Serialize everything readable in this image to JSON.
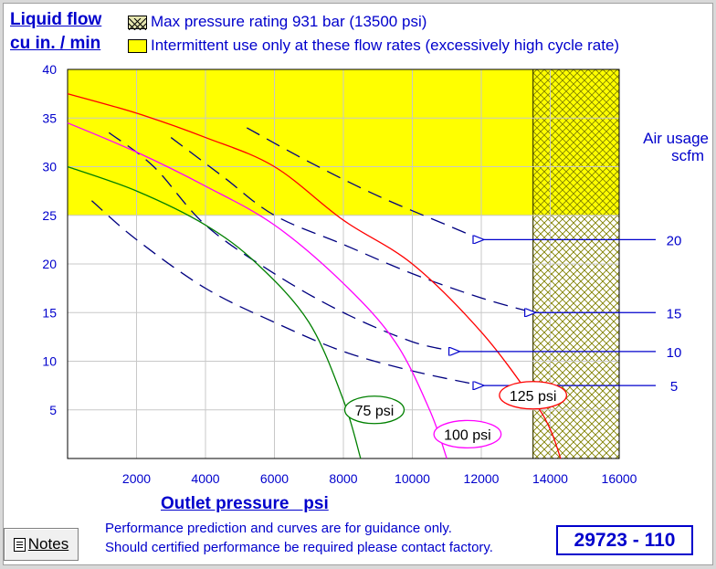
{
  "header": {
    "ylabel_line1": "Liquid flow",
    "ylabel_line2": "cu in. / min",
    "legend_hatch": "Max pressure rating 931 bar (13500 psi)",
    "legend_yellow": "Intermittent use only at these flow rates (excessively high cycle rate)",
    "right_title_line1": "Air usage",
    "right_title_line2": "scfm"
  },
  "footer": {
    "xaxis_title": "Outlet pressure   psi",
    "note_line1": "Performance prediction and curves are for guidance only.",
    "note_line2": "Should certified performance be required please contact factory.",
    "notes_button": "Notes",
    "model": "29723 - 110"
  },
  "colors": {
    "accent": "#0000cc",
    "intermittent_zone": "#ffff00",
    "max_pressure_hatch": "#808000",
    "curve_75": "#008000",
    "curve_100": "#ff00ff",
    "curve_125": "#ff0000",
    "air_usage": "#000080",
    "arrow_line": "#0000cc"
  },
  "icons": [
    "notes-icon"
  ],
  "chart_data": {
    "type": "line",
    "xlim": [
      0,
      16000
    ],
    "ylim": [
      0,
      40
    ],
    "x_ticks": [
      2000,
      4000,
      6000,
      8000,
      10000,
      12000,
      14000,
      16000
    ],
    "y_ticks": [
      5,
      10,
      15,
      20,
      25,
      30,
      35,
      40
    ],
    "x_tick_labels": [
      "2000",
      "4000",
      "6000",
      "8000",
      "10000",
      "12000",
      "14000",
      "16000"
    ],
    "y_tick_labels": [
      "5",
      "10",
      "15",
      "20",
      "25",
      "30",
      "35",
      "40"
    ],
    "grid": true,
    "intermittent_zone": {
      "y_from": 25,
      "y_to": 40
    },
    "max_pressure_zone": {
      "x_from": 13500,
      "x_to": 16000
    },
    "series": [
      {
        "name": "75 psi",
        "color": "#008000",
        "style": "solid",
        "points": [
          [
            0,
            30
          ],
          [
            2000,
            27.5
          ],
          [
            4000,
            24
          ],
          [
            5500,
            20
          ],
          [
            7000,
            14
          ],
          [
            8000,
            6
          ],
          [
            8500,
            0
          ]
        ]
      },
      {
        "name": "100 psi",
        "color": "#ff00ff",
        "style": "solid",
        "points": [
          [
            0,
            34.5
          ],
          [
            2000,
            31.5
          ],
          [
            4000,
            28
          ],
          [
            6000,
            24
          ],
          [
            8000,
            18
          ],
          [
            9500,
            12
          ],
          [
            10500,
            5
          ],
          [
            11000,
            0
          ]
        ]
      },
      {
        "name": "125 psi",
        "color": "#ff0000",
        "style": "solid",
        "points": [
          [
            0,
            37.5
          ],
          [
            2000,
            35.5
          ],
          [
            4000,
            33
          ],
          [
            6000,
            30
          ],
          [
            8000,
            24.5
          ],
          [
            10000,
            20
          ],
          [
            12000,
            13
          ],
          [
            13500,
            6
          ],
          [
            14000,
            3
          ],
          [
            14300,
            0
          ]
        ]
      }
    ],
    "air_usage": [
      {
        "name": "5",
        "color": "#000080",
        "style": "dashed",
        "points": [
          [
            700,
            26.5
          ],
          [
            2000,
            22.5
          ],
          [
            4000,
            17.5
          ],
          [
            6000,
            14
          ],
          [
            8000,
            11
          ],
          [
            10000,
            9
          ],
          [
            12000,
            7.5
          ]
        ]
      },
      {
        "name": "10",
        "color": "#000080",
        "style": "dashed",
        "points": [
          [
            1200,
            33.5
          ],
          [
            2500,
            30
          ],
          [
            4000,
            24
          ],
          [
            6000,
            19
          ],
          [
            8000,
            15
          ],
          [
            10000,
            12
          ],
          [
            11300,
            11
          ]
        ]
      },
      {
        "name": "15",
        "color": "#000080",
        "style": "dashed",
        "points": [
          [
            3000,
            33
          ],
          [
            4500,
            29
          ],
          [
            6000,
            25
          ],
          [
            8000,
            22
          ],
          [
            10000,
            19
          ],
          [
            12000,
            16.5
          ],
          [
            13500,
            15
          ]
        ]
      },
      {
        "name": "20",
        "color": "#000080",
        "style": "dashed",
        "points": [
          [
            5200,
            34
          ],
          [
            7000,
            30.5
          ],
          [
            9000,
            27
          ],
          [
            11000,
            24
          ],
          [
            12000,
            22.5
          ]
        ]
      }
    ],
    "air_usage_arrows": [
      {
        "label": "20",
        "y": 22.5,
        "x_end": 12000
      },
      {
        "label": "15",
        "y": 15,
        "x_end": 13500
      },
      {
        "label": "10",
        "y": 11,
        "x_end": 11300
      },
      {
        "label": "5",
        "y": 7.5,
        "x_end": 12000
      }
    ],
    "curve_labels": [
      {
        "text": "75 psi",
        "x": 8900,
        "y": 5,
        "color": "#008000"
      },
      {
        "text": "100 psi",
        "x": 11600,
        "y": 2.5,
        "color": "#ff00ff"
      },
      {
        "text": "125 psi",
        "x": 13500,
        "y": 6.5,
        "color": "#ff0000"
      }
    ]
  }
}
